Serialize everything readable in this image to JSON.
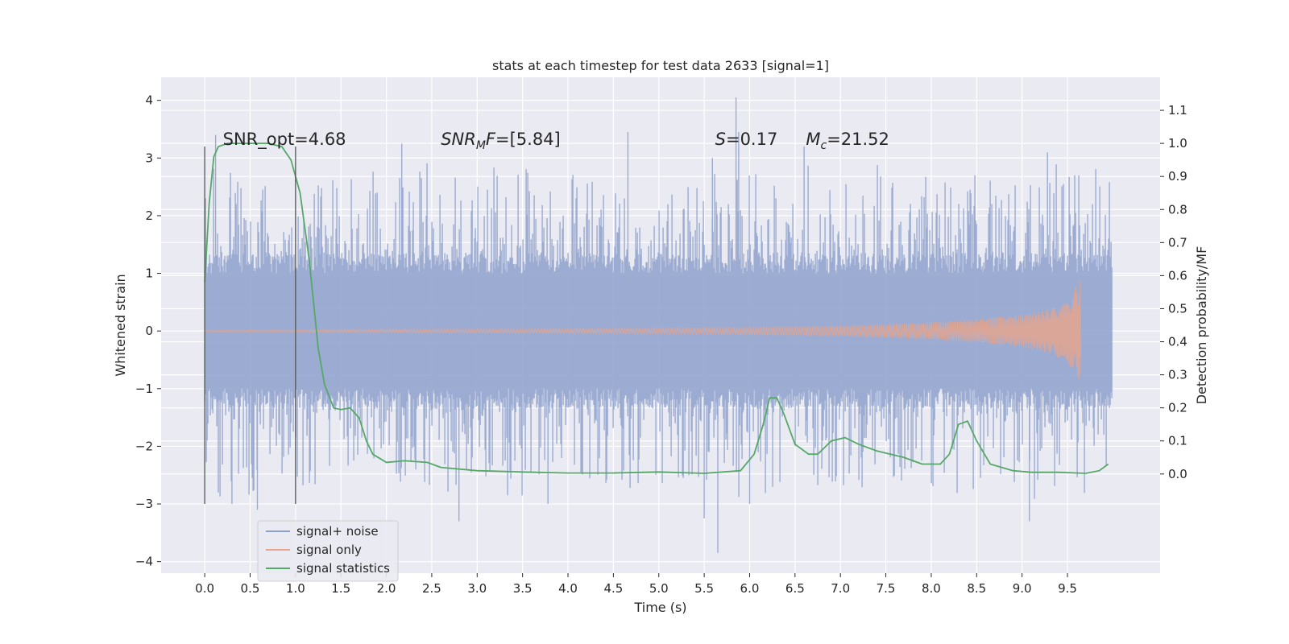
{
  "chart_data": {
    "type": "line",
    "title": "stats at each timestep for test data 2633 [signal=1]",
    "xlabel": "Time (s)",
    "ylabel": "Whitened strain",
    "y2label": "Detection probability/MF",
    "xlim": [
      -0.48,
      10.52
    ],
    "ylim": [
      -4.2,
      4.4
    ],
    "y2lim": [
      -0.3,
      1.2
    ],
    "xticks": [
      0.0,
      0.5,
      1.0,
      1.5,
      2.0,
      2.5,
      3.0,
      3.5,
      4.0,
      4.5,
      5.0,
      5.5,
      6.0,
      6.5,
      7.0,
      7.5,
      8.0,
      8.5,
      9.0,
      9.5
    ],
    "yticks": [
      4,
      3,
      2,
      1,
      0,
      -1,
      -2,
      -3,
      -4
    ],
    "y2ticks": [
      1.1,
      1.0,
      0.9,
      0.8,
      0.7,
      0.6,
      0.5,
      0.4,
      0.3,
      0.2,
      0.1,
      0.0
    ],
    "grid": true,
    "legend_position": "lower-left",
    "annotations": [
      {
        "kind": "plain",
        "text": "SNR_opt=4.68",
        "x": 0.2,
        "y": 3.2
      },
      {
        "kind": "snr_mf",
        "main": "SNR",
        "sub": "M",
        "rest": "F=[5.84]",
        "x": 2.6,
        "y": 3.2
      },
      {
        "kind": "var",
        "main": "S",
        "sub": "",
        "rest": "=0.17",
        "x": 5.62,
        "y": 3.2
      },
      {
        "kind": "var",
        "main": "M",
        "sub": "c",
        "rest": "=21.52",
        "x": 6.62,
        "y": 3.2
      }
    ],
    "vlines": [
      {
        "x": 0.0,
        "y_from": -3.0,
        "y_to": 3.2
      },
      {
        "x": 1.0,
        "y_from": -3.0,
        "y_to": 3.2
      }
    ],
    "series": [
      {
        "name": "signal+ noise",
        "color": "#8da0cb",
        "axis": "left",
        "description": "dense noisy whitened strain from 0 to 10 s, core band about ±1.3 with spikes to ±3",
        "x_range": [
          0.0,
          9.99
        ],
        "spikes": [
          {
            "x": 0.12,
            "y": 3.4
          },
          {
            "x": 0.15,
            "y": -2.8
          },
          {
            "x": 0.3,
            "y": -3.0
          },
          {
            "x": 0.58,
            "y": -3.1
          },
          {
            "x": 2.17,
            "y": 3.25
          },
          {
            "x": 2.8,
            "y": -3.3
          },
          {
            "x": 3.78,
            "y": -3.0
          },
          {
            "x": 4.66,
            "y": 3.45
          },
          {
            "x": 5.5,
            "y": -3.25
          },
          {
            "x": 5.59,
            "y": 3.0
          },
          {
            "x": 5.85,
            "y": 4.05
          },
          {
            "x": 5.65,
            "y": -3.85
          },
          {
            "x": 5.88,
            "y": 3.45
          },
          {
            "x": 6.6,
            "y": 3.2
          },
          {
            "x": 6.0,
            "y": -3.0
          },
          {
            "x": 9.08,
            "y": -3.3
          },
          {
            "x": 9.28,
            "y": 3.1
          },
          {
            "x": 9.58,
            "y": 2.7
          }
        ]
      },
      {
        "name": "signal only",
        "color": "#e5a58e",
        "axis": "left",
        "description": "chirp signal growing in amplitude toward merger near 9.65 s",
        "points": [
          [
            0.0,
            0.02
          ],
          [
            2.0,
            0.03
          ],
          [
            4.0,
            0.04
          ],
          [
            6.0,
            0.06
          ],
          [
            7.0,
            0.09
          ],
          [
            8.0,
            0.15
          ],
          [
            8.5,
            0.2
          ],
          [
            9.0,
            0.28
          ],
          [
            9.3,
            0.38
          ],
          [
            9.45,
            0.5
          ],
          [
            9.55,
            0.65
          ],
          [
            9.62,
            0.85
          ],
          [
            9.65,
            0.95
          ],
          [
            9.66,
            0.0
          ]
        ]
      },
      {
        "name": "signal statistics",
        "color": "#55a868",
        "axis": "right",
        "points": [
          [
            0.0,
            0.58
          ],
          [
            0.05,
            0.82
          ],
          [
            0.1,
            0.96
          ],
          [
            0.15,
            0.99
          ],
          [
            0.25,
            1.0
          ],
          [
            0.5,
            1.0
          ],
          [
            0.7,
            1.0
          ],
          [
            0.85,
            0.99
          ],
          [
            0.95,
            0.95
          ],
          [
            1.05,
            0.85
          ],
          [
            1.15,
            0.65
          ],
          [
            1.25,
            0.38
          ],
          [
            1.32,
            0.27
          ],
          [
            1.42,
            0.2
          ],
          [
            1.5,
            0.195
          ],
          [
            1.6,
            0.2
          ],
          [
            1.7,
            0.17
          ],
          [
            1.78,
            0.1
          ],
          [
            1.85,
            0.06
          ],
          [
            2.0,
            0.035
          ],
          [
            2.2,
            0.04
          ],
          [
            2.45,
            0.035
          ],
          [
            2.6,
            0.02
          ],
          [
            3.0,
            0.01
          ],
          [
            3.5,
            0.006
          ],
          [
            4.0,
            0.003
          ],
          [
            4.5,
            0.003
          ],
          [
            5.0,
            0.006
          ],
          [
            5.5,
            0.002
          ],
          [
            5.9,
            0.01
          ],
          [
            6.05,
            0.06
          ],
          [
            6.15,
            0.15
          ],
          [
            6.22,
            0.23
          ],
          [
            6.3,
            0.23
          ],
          [
            6.38,
            0.18
          ],
          [
            6.5,
            0.09
          ],
          [
            6.65,
            0.06
          ],
          [
            6.75,
            0.06
          ],
          [
            6.9,
            0.1
          ],
          [
            7.05,
            0.11
          ],
          [
            7.2,
            0.09
          ],
          [
            7.4,
            0.07
          ],
          [
            7.7,
            0.05
          ],
          [
            7.9,
            0.03
          ],
          [
            8.1,
            0.03
          ],
          [
            8.2,
            0.06
          ],
          [
            8.3,
            0.15
          ],
          [
            8.4,
            0.16
          ],
          [
            8.5,
            0.1
          ],
          [
            8.65,
            0.03
          ],
          [
            8.9,
            0.01
          ],
          [
            9.1,
            0.005
          ],
          [
            9.4,
            0.005
          ],
          [
            9.7,
            0.002
          ],
          [
            9.85,
            0.01
          ],
          [
            9.95,
            0.03
          ]
        ]
      }
    ]
  }
}
